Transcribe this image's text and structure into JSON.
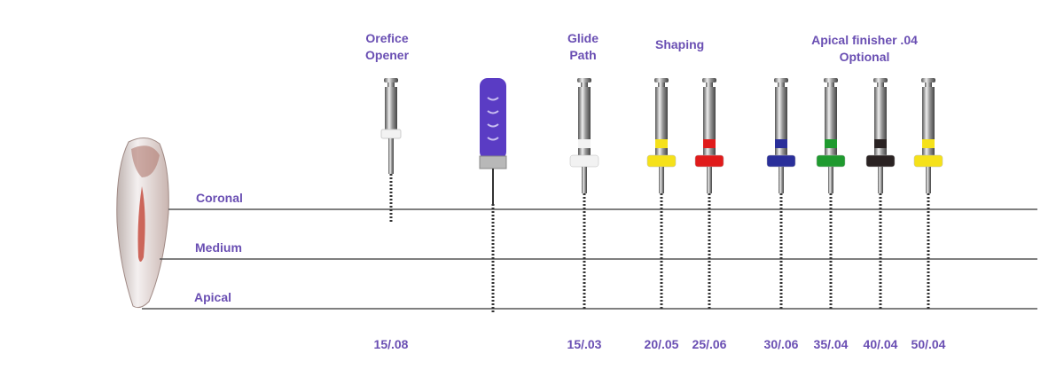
{
  "groups": {
    "orifice": "Orefice\nOpener",
    "glide": "Glide\nPath",
    "shaping": "Shaping",
    "apical_line1": "Apical finisher .04",
    "apical_line2": "Optional"
  },
  "zones": {
    "coronal": "Coronal",
    "medium": "Medium",
    "apical": "Apical"
  },
  "files": [
    {
      "type": "orifice",
      "color": "#f2f2f2",
      "size": "15/.08"
    },
    {
      "type": "hand",
      "color": "#5a3cc4",
      "size": ""
    },
    {
      "type": "rotary",
      "color": "#f2f2f2",
      "size": "15/.03"
    },
    {
      "type": "rotary",
      "color": "#f5e11a",
      "size": "20/.05"
    },
    {
      "type": "rotary",
      "color": "#e01b1b",
      "size": "25/.06"
    },
    {
      "type": "rotary",
      "color": "#2a2f9a",
      "size": "30/.06"
    },
    {
      "type": "rotary",
      "color": "#1f9a2f",
      "size": "35/.04"
    },
    {
      "type": "rotary",
      "color": "#2a2222",
      "size": "40/.04"
    },
    {
      "type": "rotary",
      "color": "#f5e11a",
      "size": "50/.04"
    }
  ],
  "colors": {
    "text": "#6a4fb3",
    "line": "#555555"
  }
}
